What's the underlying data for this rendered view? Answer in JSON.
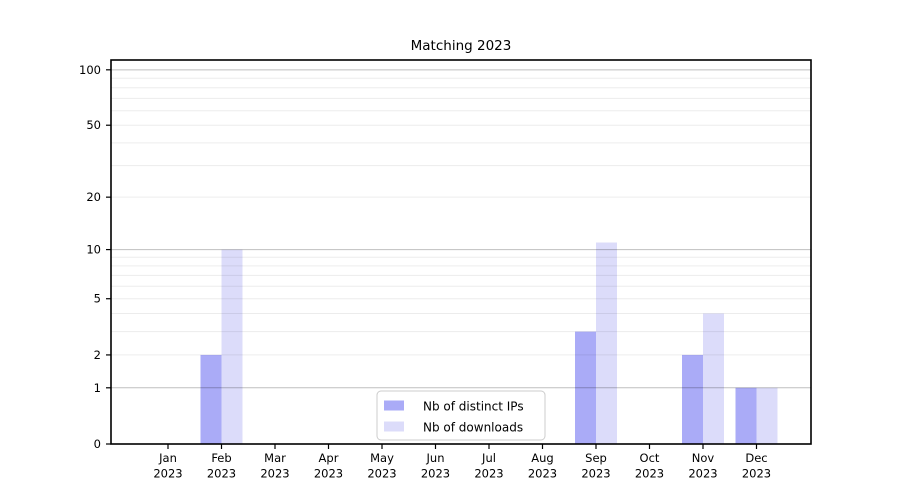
{
  "chart_data": {
    "type": "bar",
    "title": "Matching 2023",
    "categories": [
      "Jan 2023",
      "Feb 2023",
      "Mar 2023",
      "Apr 2023",
      "May 2023",
      "Jun 2023",
      "Jul 2023",
      "Aug 2023",
      "Sep 2023",
      "Oct 2023",
      "Nov 2023",
      "Dec 2023"
    ],
    "series": [
      {
        "name": "Nb of distinct IPs",
        "color": "#aaabf7",
        "values": [
          0,
          2,
          0,
          0,
          0,
          0,
          0,
          0,
          3,
          0,
          2,
          1
        ]
      },
      {
        "name": "Nb of downloads",
        "color": "#dcdcfa",
        "values": [
          0,
          10,
          0,
          0,
          0,
          0,
          0,
          0,
          11,
          0,
          4,
          1
        ]
      }
    ],
    "xlabel": "",
    "ylabel": "",
    "yscale": "log1p",
    "ylim": [
      0,
      113
    ],
    "yticks": [
      0,
      1,
      2,
      5,
      10,
      20,
      50,
      100
    ],
    "gridlines_major": [
      1,
      10,
      100
    ],
    "gridlines_minor": [
      2,
      3,
      4,
      5,
      6,
      7,
      8,
      9,
      20,
      30,
      40,
      50,
      60,
      70,
      80,
      90
    ],
    "grid": true,
    "legend_position": "lower center"
  }
}
